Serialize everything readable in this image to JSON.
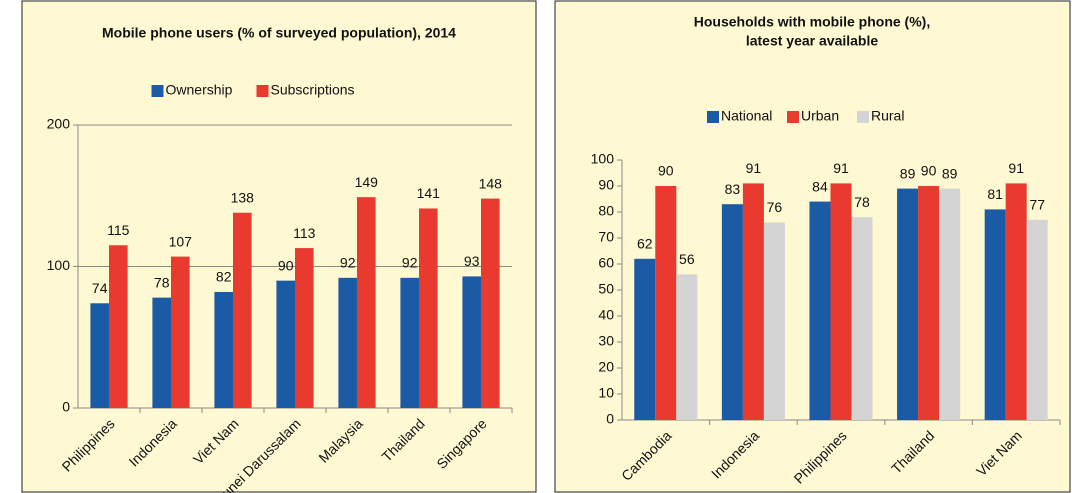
{
  "chart_data": [
    {
      "type": "bar",
      "title": "Mobile phone users (% of surveyed population), 2014",
      "categories": [
        "Philippines",
        "Indonesia",
        "Viet Nam",
        "Brunei Darussalam",
        "Malaysia",
        "Thailand",
        "Singapore"
      ],
      "series": [
        {
          "name": "Ownership",
          "color": "#1b5aa5",
          "values": [
            74,
            78,
            82,
            90,
            92,
            92,
            93
          ]
        },
        {
          "name": "Subscriptions",
          "color": "#e83a2f",
          "values": [
            115,
            107,
            138,
            113,
            149,
            141,
            148
          ]
        }
      ],
      "ylim": [
        0,
        200
      ],
      "yticks": [
        0,
        100,
        200
      ],
      "grid": true,
      "legend": "top"
    },
    {
      "type": "bar",
      "title": [
        "Households with mobile phone (%),",
        "latest year available"
      ],
      "categories": [
        "Cambodia",
        "Indonesia",
        "Philippines",
        "Thailand",
        "Viet Nam"
      ],
      "series": [
        {
          "name": "National",
          "color": "#1b5aa5",
          "values": [
            62,
            83,
            84,
            89,
            81
          ]
        },
        {
          "name": "Urban",
          "color": "#e83a2f",
          "values": [
            90,
            91,
            91,
            90,
            91
          ]
        },
        {
          "name": "Rural",
          "color": "#d4d4d4",
          "values": [
            56,
            76,
            78,
            89,
            77
          ]
        }
      ],
      "ylim": [
        0,
        100
      ],
      "yticks": [
        0,
        10,
        20,
        30,
        40,
        50,
        60,
        70,
        80,
        90,
        100
      ],
      "grid": false,
      "legend": "top"
    }
  ]
}
